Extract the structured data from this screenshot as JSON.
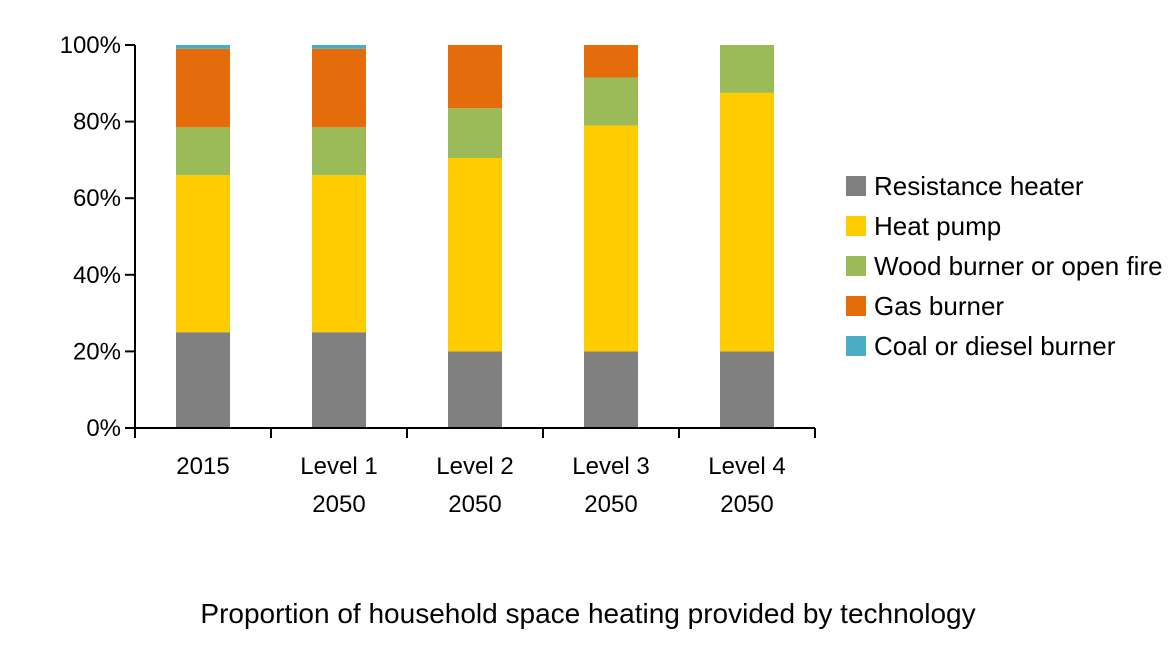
{
  "chart_data": {
    "type": "bar",
    "stacked": true,
    "title": "Proportion of household space heating provided by technology",
    "categories": [
      [
        "2015"
      ],
      [
        "Level 1",
        "2050"
      ],
      [
        "Level 2",
        "2050"
      ],
      [
        "Level 3",
        "2050"
      ],
      [
        "Level 4",
        "2050"
      ]
    ],
    "yticks": [
      "0%",
      "20%",
      "40%",
      "60%",
      "80%",
      "100%"
    ],
    "ylim": [
      0,
      100
    ],
    "grid": false,
    "legend_position": "right",
    "series": [
      {
        "name": "Resistance heater",
        "color": "#808080",
        "values": [
          25,
          25,
          20,
          20,
          20
        ]
      },
      {
        "name": "Heat pump",
        "color": "#FFCC00",
        "values": [
          41,
          41,
          50.5,
          59,
          67.5
        ]
      },
      {
        "name": "Wood burner or open fire",
        "color": "#9BBB59",
        "values": [
          12.5,
          12.5,
          13,
          12.5,
          12.5
        ]
      },
      {
        "name": "Gas burner",
        "color": "#E46C0A",
        "values": [
          20.5,
          20.5,
          16.5,
          8.5,
          0
        ]
      },
      {
        "name": "Coal or diesel burner",
        "color": "#4BACC6",
        "values": [
          1,
          1,
          0,
          0,
          0
        ]
      }
    ]
  }
}
